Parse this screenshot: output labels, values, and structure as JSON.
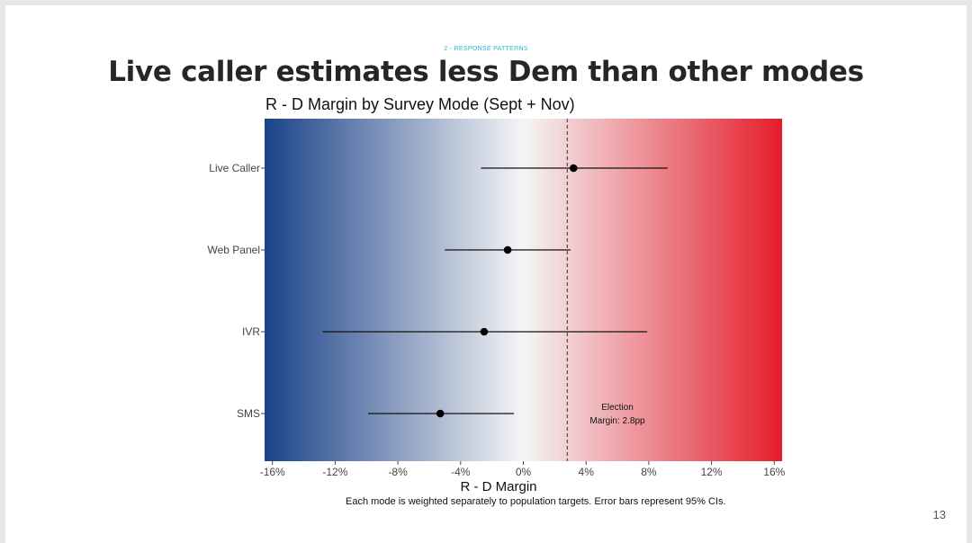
{
  "slide": {
    "section_label": "2 - RESPONSE PATTERNS",
    "title": "Live caller estimates less Dem than other modes",
    "footnote": "Each mode is weighted separately to population targets. Error bars represent 95% CIs.",
    "page_number": "13"
  },
  "chart_data": {
    "type": "scatter",
    "title": "R - D Margin by Survey Mode (Sept + Nov)",
    "xlabel": "R - D Margin",
    "ylabel": "",
    "xlim": [
      -16.5,
      16.5
    ],
    "x_ticks": [
      -16,
      -12,
      -8,
      -4,
      0,
      4,
      8,
      12,
      16
    ],
    "x_tick_labels": [
      "-16%",
      "-12%",
      "-8%",
      "-4%",
      "0%",
      "4%",
      "8%",
      "12%",
      "16%"
    ],
    "categories": [
      "Live Caller",
      "Web Panel",
      "IVR",
      "SMS"
    ],
    "series": [
      {
        "estimate": [
          3.2,
          -1.0,
          -2.5,
          -5.3
        ],
        "ci_low": [
          -2.7,
          -5.0,
          -12.8,
          -9.9
        ],
        "ci_high": [
          9.2,
          3.0,
          7.9,
          -0.6
        ]
      }
    ],
    "reference_line": {
      "x": 2.8,
      "style": "dashed",
      "label_line1": "Election",
      "label_line2": "Margin: 2.8pp"
    },
    "background_gradient": {
      "left_color": "#1b4389",
      "middle_color": "#f5f5f5",
      "right_color": "#e41d2b"
    },
    "grid": false,
    "legend": "none"
  }
}
